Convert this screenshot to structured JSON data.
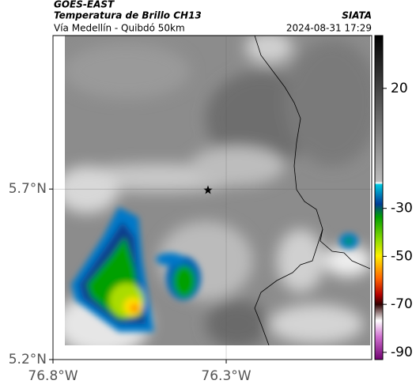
{
  "header": {
    "satellite": "GOES-EAST",
    "product": "Temperatura de Brillo CH13",
    "source": "SIATA",
    "region": "Vía Medellín - Quibdó 50km",
    "timestamp": "2024-08-31 17:29"
  },
  "map": {
    "xlim": [
      -76.8,
      -75.88
    ],
    "ylim": [
      5.2,
      6.15
    ],
    "xticks": [
      {
        "value": -76.8,
        "label": "76.8°W"
      },
      {
        "value": -76.3,
        "label": "76.3°W"
      }
    ],
    "yticks": [
      {
        "value": 5.2,
        "label": "5.2°N"
      },
      {
        "value": 5.7,
        "label": "5.7°N"
      }
    ],
    "grid": true
  },
  "colorbar": {
    "lim": [
      -93,
      42
    ],
    "ticks": [
      20,
      -30,
      -50,
      -70,
      -90
    ]
  }
}
